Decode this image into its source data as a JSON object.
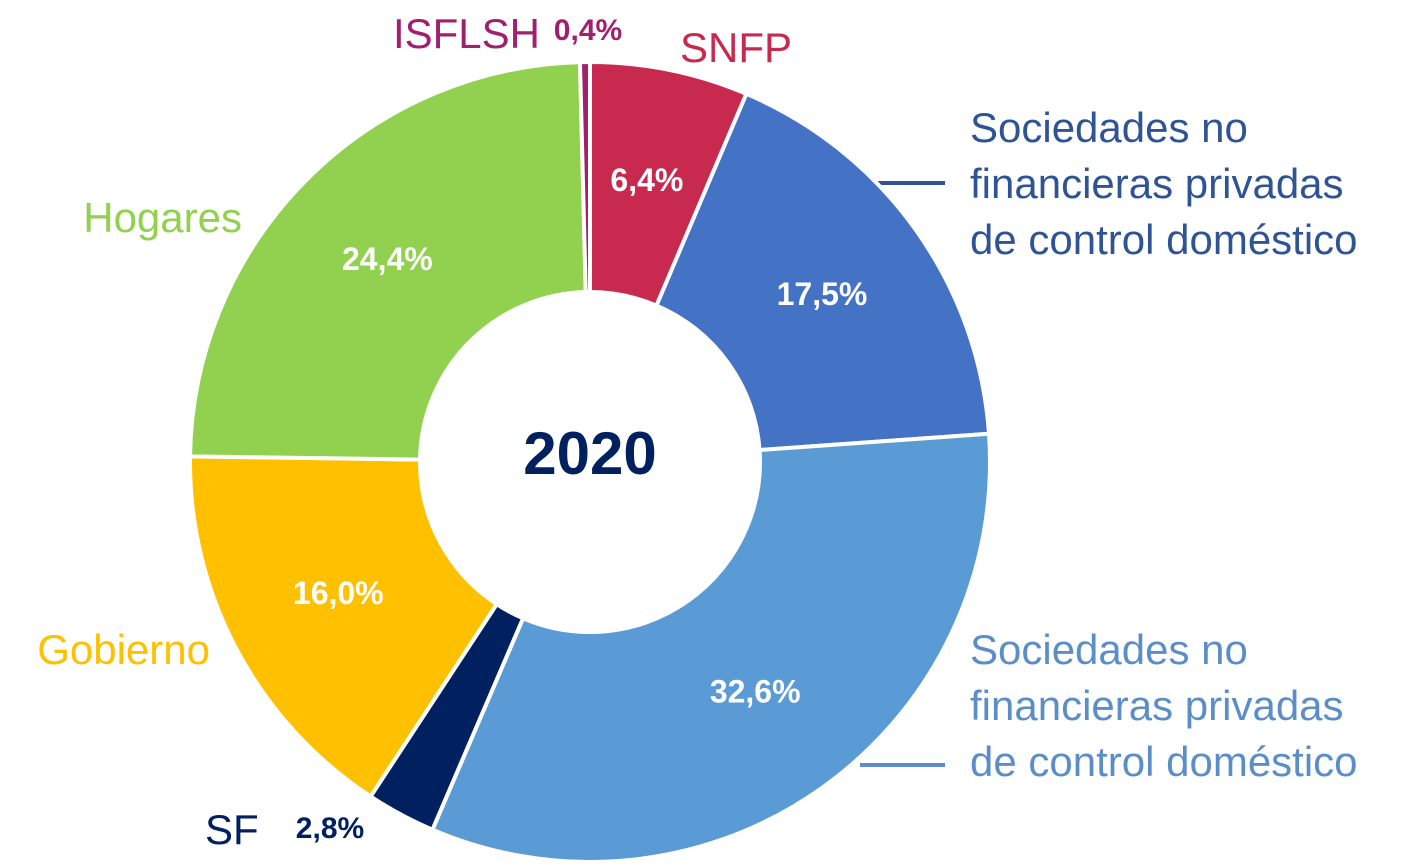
{
  "chart_data": {
    "type": "donut",
    "center_label": "2020",
    "categories": [
      "SNFP",
      "Sociedades no\nfinancieras privadas\nde control doméstico",
      "Sociedades no\nfinancieras privadas\nde control doméstico",
      "SF",
      "Gobierno",
      "Hogares",
      "ISFLSH"
    ],
    "values": [
      6.4,
      17.5,
      32.6,
      2.8,
      16.0,
      24.4,
      0.4
    ],
    "value_labels": [
      "6,4%",
      "17,5%",
      "32,6%",
      "2,8%",
      "16,0%",
      "24,4%",
      "0,4%"
    ],
    "colors": [
      "#c8294f",
      "#4472c4",
      "#5b9bd5",
      "#002060",
      "#ffc000",
      "#92d050",
      "#a0206e"
    ],
    "label_colors": [
      "#c8294f",
      "#2f5496",
      "#5b8ec8",
      "#002060",
      "#ffc000",
      "#92d050",
      "#a0206e"
    ],
    "value_label_colors": [
      "#ffffff",
      "#ffffff",
      "#ffffff",
      "#002060",
      "#ffffff",
      "#ffffff",
      "#a0206e"
    ]
  }
}
